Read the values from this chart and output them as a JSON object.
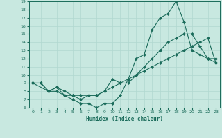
{
  "xlabel": "Humidex (Indice chaleur)",
  "xlim": [
    -0.5,
    23.5
  ],
  "ylim": [
    6,
    19
  ],
  "xticks": [
    0,
    1,
    2,
    3,
    4,
    5,
    6,
    7,
    8,
    9,
    10,
    11,
    12,
    13,
    14,
    15,
    16,
    17,
    18,
    19,
    20,
    21,
    22,
    23
  ],
  "yticks": [
    6,
    7,
    8,
    9,
    10,
    11,
    12,
    13,
    14,
    15,
    16,
    17,
    18,
    19
  ],
  "bg_color": "#c8e8e0",
  "line_color": "#1a6b5a",
  "grid_color": "#b0d8d0",
  "line1_x": [
    0,
    1,
    2,
    3,
    4,
    5,
    6,
    7,
    8,
    9,
    10,
    11,
    12,
    13,
    14,
    15,
    16,
    17,
    18,
    19,
    20,
    21,
    22,
    23
  ],
  "line1_y": [
    9,
    9,
    8,
    8.5,
    7.5,
    7,
    6.5,
    6.5,
    6,
    6.5,
    6.5,
    7.5,
    9.5,
    12,
    12.5,
    15.5,
    17,
    17.5,
    19,
    16.5,
    13,
    12.5,
    12,
    12
  ],
  "line2_x": [
    0,
    1,
    2,
    3,
    4,
    5,
    6,
    7,
    8,
    9,
    10,
    11,
    12,
    13,
    14,
    15,
    16,
    17,
    18,
    19,
    20,
    21,
    22,
    23
  ],
  "line2_y": [
    9,
    9,
    8,
    8,
    7.5,
    7.5,
    7,
    7.5,
    7.5,
    8,
    9.5,
    9,
    9,
    10,
    11,
    12,
    13,
    14,
    14.5,
    15,
    15,
    13.5,
    12,
    11.5
  ],
  "line3_x": [
    0,
    2,
    3,
    4,
    5,
    6,
    7,
    8,
    9,
    10,
    11,
    12,
    13,
    14,
    15,
    16,
    17,
    18,
    19,
    20,
    21,
    22,
    23
  ],
  "line3_y": [
    9,
    8,
    8.5,
    8,
    7.5,
    7.5,
    7.5,
    7.5,
    8,
    8.5,
    9,
    9.5,
    10,
    10.5,
    11,
    11.5,
    12,
    12.5,
    13,
    13.5,
    14,
    14.5,
    11.5
  ]
}
